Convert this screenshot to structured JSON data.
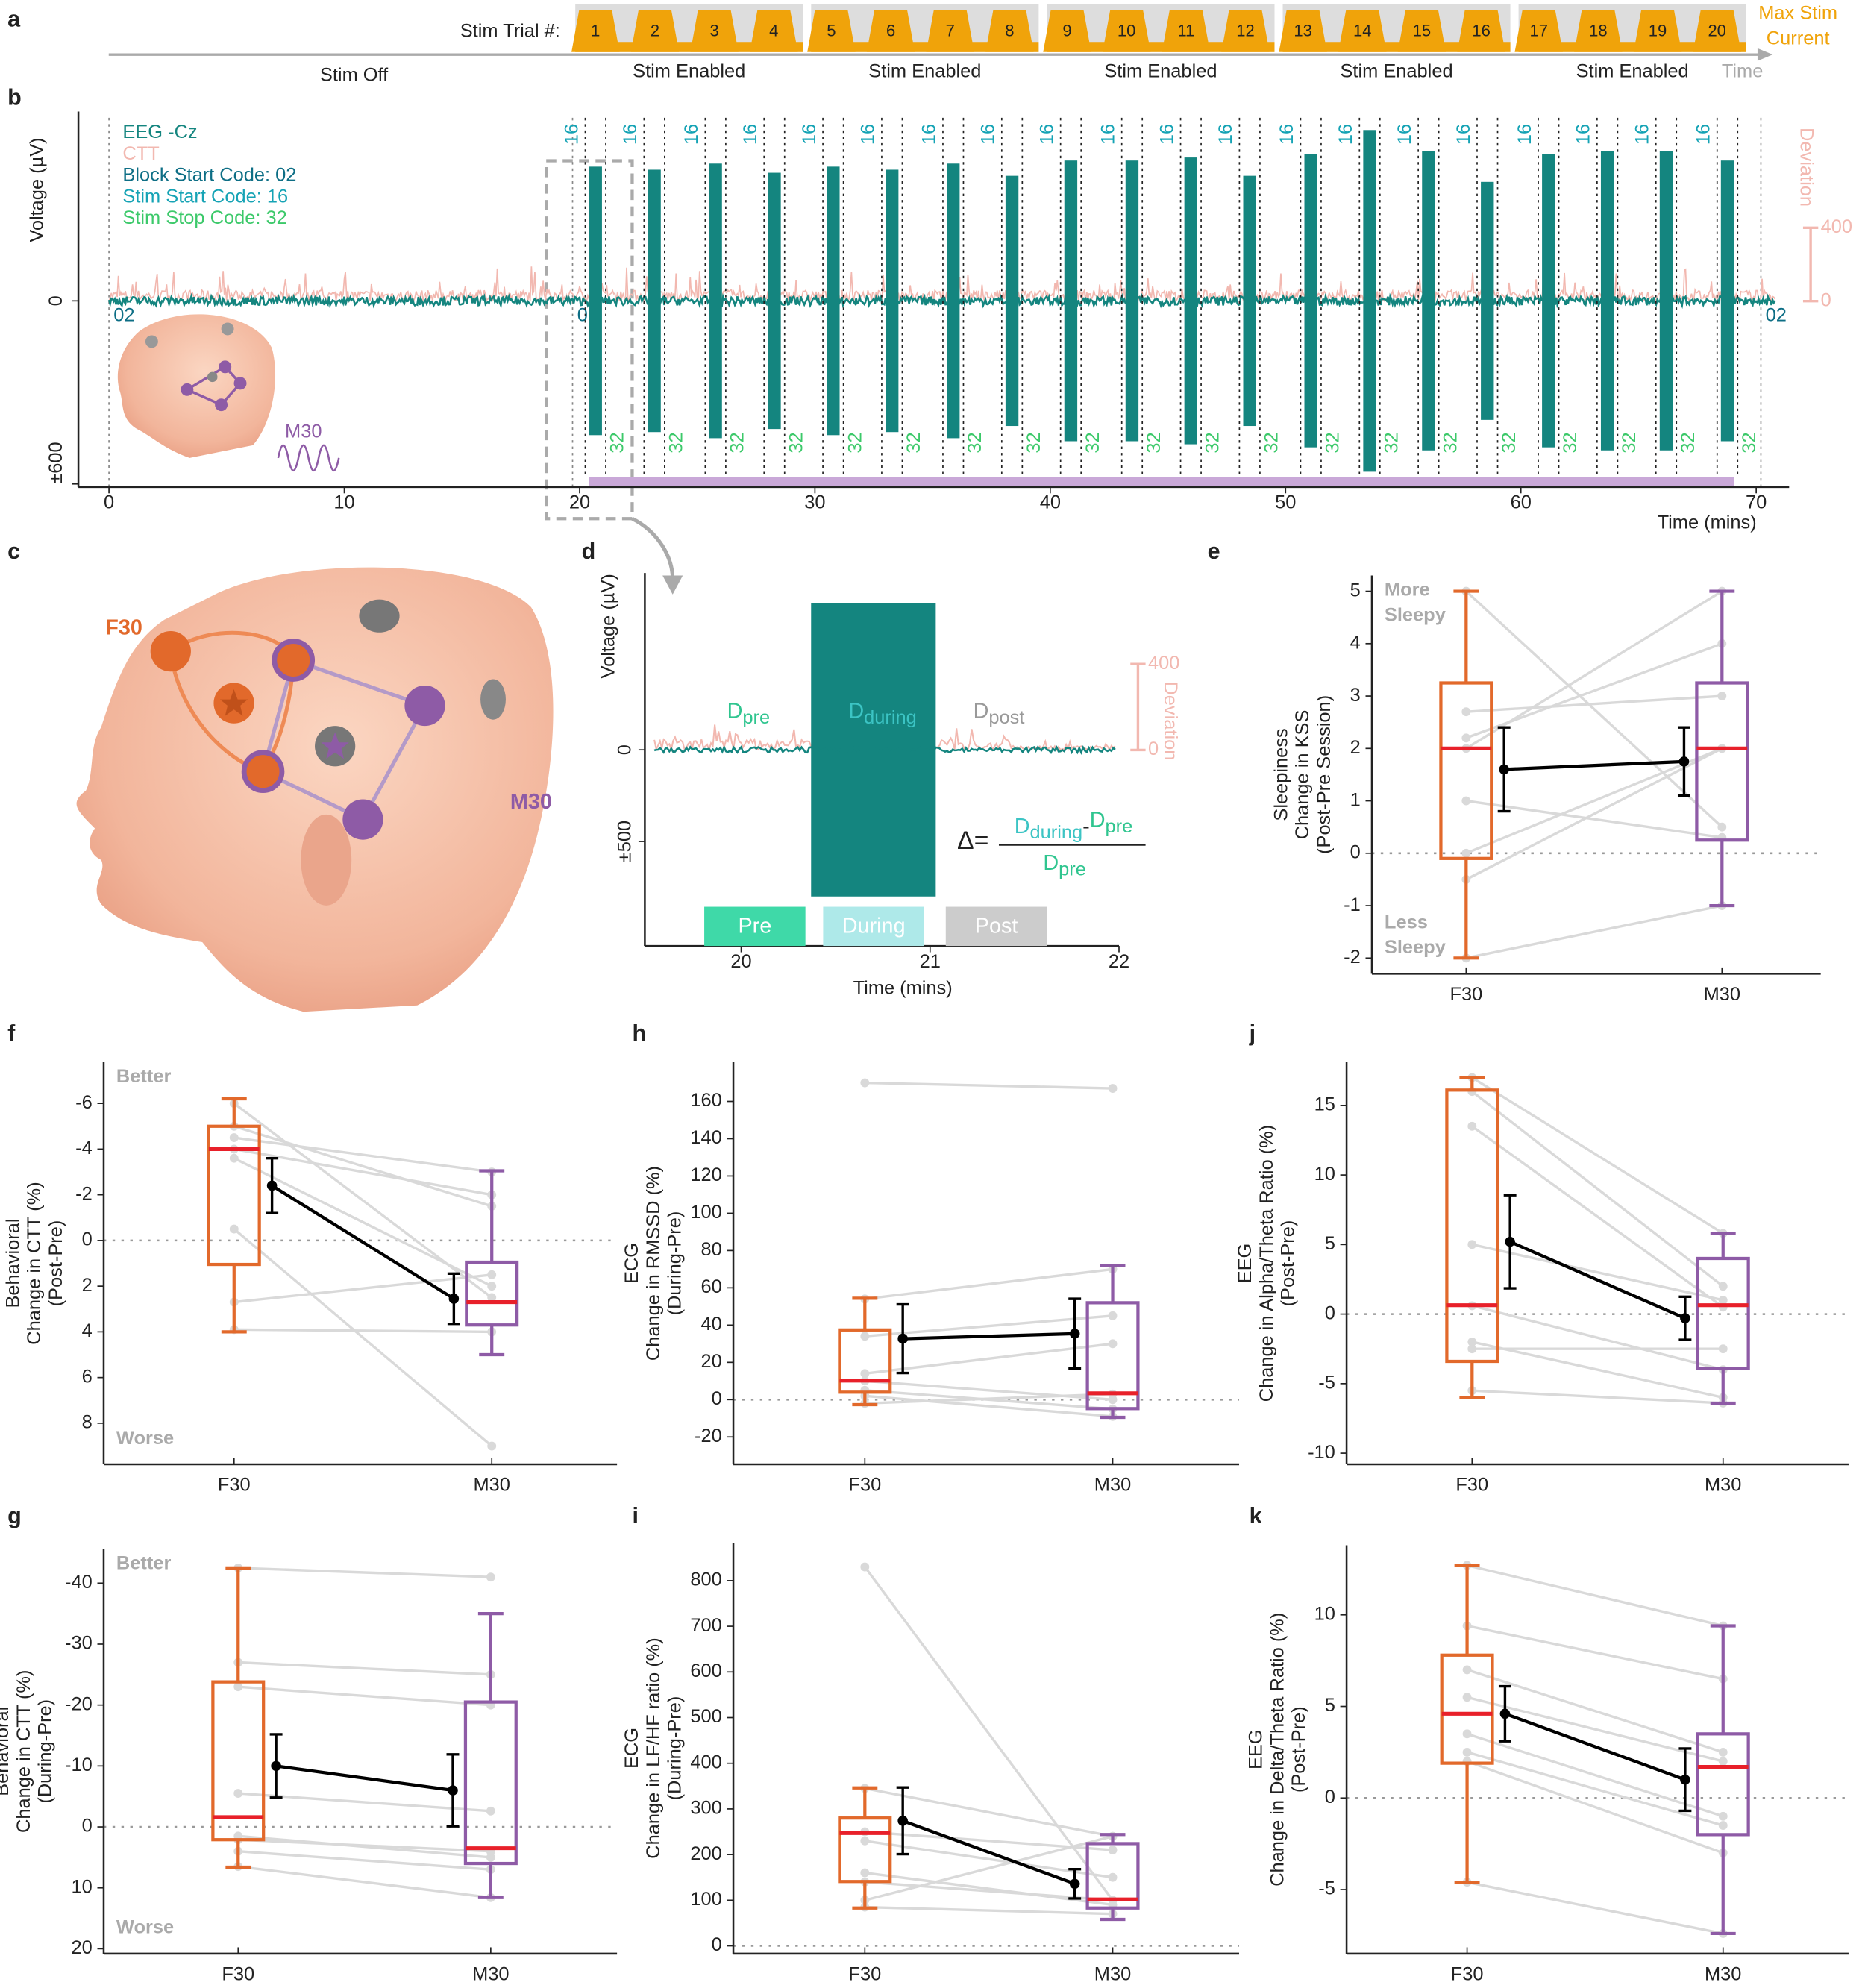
{
  "timeline": {
    "label": "a",
    "trial_prompt": "Stim Trial #:",
    "trials": [
      1,
      2,
      3,
      4,
      5,
      6,
      7,
      8,
      9,
      10,
      11,
      12,
      13,
      14,
      15,
      16,
      17,
      18,
      19,
      20
    ],
    "group_label": "Stim Enabled",
    "off_label": "Stim Off",
    "max_label": [
      "Max Stim",
      "Current"
    ],
    "axis_label": "Time",
    "color": "#f0a30a"
  },
  "eeg": {
    "label": "b",
    "legend": [
      {
        "name": "EEG -Cz",
        "color": "#14857f"
      },
      {
        "name": "CTT",
        "color": "#f2b8b0"
      },
      {
        "name": "Block Start Code: 02",
        "color": "#0d6e85"
      },
      {
        "name": "Stim Start Code: 16",
        "color": "#15a3b5"
      },
      {
        "name": "Stim Stop Code: 32",
        "color": "#3cc96a"
      }
    ],
    "ylabel": "Voltage (µV)",
    "xlabel": "Time (mins)",
    "xlim": [
      -1.3,
      71.4
    ],
    "xticks": [
      0,
      10,
      20,
      30,
      40,
      50,
      60,
      70
    ],
    "ylim": [
      -610,
      600
    ],
    "yticks": [
      {
        "value": -600,
        "label": "±600"
      },
      0
    ],
    "y2lim": [
      -1014,
      1000
    ],
    "y2ticks": [
      0,
      400
    ],
    "y2label": "Deviation",
    "block_code": "02",
    "start_code": "16",
    "stop_code": "32",
    "block_starts": [
      0,
      19.7,
      70.2
    ],
    "burst_starts": [
      20.4,
      22.9,
      25.5,
      28.0,
      30.5,
      33.0,
      35.6,
      38.1,
      40.6,
      43.2,
      45.7,
      48.2,
      50.8,
      53.3,
      55.8,
      58.3,
      60.9,
      63.4,
      65.9,
      68.5
    ],
    "burst_ends": [
      20.95,
      23.45,
      26.05,
      28.55,
      31.05,
      33.55,
      36.15,
      38.65,
      41.15,
      43.75,
      46.25,
      48.75,
      51.35,
      53.85,
      56.35,
      58.85,
      61.45,
      63.95,
      66.45,
      69.05
    ],
    "burst_amplitudes": [
      440,
      430,
      450,
      420,
      440,
      430,
      450,
      410,
      460,
      460,
      470,
      410,
      480,
      560,
      490,
      390,
      480,
      490,
      490,
      460
    ],
    "montage_label": "M30"
  },
  "montage": {
    "label": "c",
    "f30": "F30",
    "m30": "M30"
  },
  "zoom": {
    "label": "d",
    "ylabel": "Voltage (µV)",
    "xlabel": "Time (mins)",
    "xlim": [
      19.49,
      22
    ],
    "xticks": [
      20,
      21,
      22
    ],
    "ylim": [
      -1070,
      965
    ],
    "yticks": [
      {
        "value": -500,
        "label": "±500"
      },
      0
    ],
    "y2lim": [
      -912,
      824
    ],
    "y2ticks": [
      0,
      400
    ],
    "y2label": "Deviation",
    "burst": {
      "start": 20.37,
      "end": 21.03,
      "amplitude": 800
    },
    "terms": {
      "pre": {
        "base": "D",
        "sub": "pre",
        "color": "#2fc58f"
      },
      "during": {
        "base": "D",
        "sub": "during",
        "color": "#3cc4c4"
      },
      "post": {
        "base": "D",
        "sub": "post",
        "color": "#999999"
      }
    },
    "formula": {
      "lhs": "Δ=",
      "minus": "-"
    },
    "phases": [
      {
        "name": "Pre",
        "color": "#3fd9a8"
      },
      {
        "name": "During",
        "color": "#aee9e9"
      },
      {
        "name": "Post",
        "color": "#cccccc"
      }
    ]
  },
  "chart_data": [
    {
      "type": "box",
      "label": "e",
      "ylabel": [
        "Sleepiness",
        "Change in KSS",
        "(Post-Pre Session)"
      ],
      "categories": [
        "F30",
        "M30"
      ],
      "colors": [
        "#e2692b",
        "#8e5ba6"
      ],
      "median_color": "#e8202a",
      "mean_color": "#000000",
      "subject_color": "#d9d9d9",
      "ylim": [
        -2.3,
        5.3
      ],
      "yticks": [
        -2,
        -1,
        0,
        1,
        2,
        3,
        4,
        5
      ],
      "hline": 0,
      "annotations": [
        [
          "More",
          "Sleepy"
        ],
        [
          "Less",
          "Sleepy"
        ]
      ],
      "boxes": [
        [
          -2,
          -0.1,
          2,
          3.25,
          5
        ],
        [
          -1,
          0.25,
          2,
          3.25,
          5
        ]
      ],
      "means": [
        1.6,
        1.75
      ],
      "sem": [
        0.8,
        0.65
      ],
      "subjects": [
        [
          5,
          2.7,
          2.2,
          2,
          1,
          0,
          -0.5,
          -2
        ],
        [
          0.5,
          3,
          4,
          5,
          0.3,
          2,
          2,
          -1
        ]
      ]
    },
    {
      "type": "box",
      "label": "f",
      "ylabel": [
        "Behavioral",
        "Change in CTT (%)",
        "(Post-Pre)"
      ],
      "categories": [
        "F30",
        "M30"
      ],
      "colors": [
        "#e2692b",
        "#8e5ba6"
      ],
      "median_color": "#e8202a",
      "mean_color": "#000000",
      "subject_color": "#d9d9d9",
      "ylim": [
        9.8,
        -7.8
      ],
      "yticks": [
        -6,
        -4,
        -2,
        0,
        2,
        4,
        6,
        8
      ],
      "hline": 0,
      "annotations": [
        [
          "Better"
        ],
        [
          "Worse"
        ]
      ],
      "boxes": [
        [
          -6.2,
          -5,
          -4,
          1.05,
          4
        ],
        [
          -3.05,
          0.95,
          2.7,
          3.7,
          5
        ]
      ],
      "means": [
        -2.4,
        2.55
      ],
      "sem": [
        1.2,
        1.1
      ],
      "subjects": [
        [
          -6,
          -4.5,
          -4,
          -3.6,
          -0.5,
          2.7,
          3.9,
          -5
        ],
        [
          2.5,
          -3,
          -2,
          2,
          9,
          1.5,
          4,
          -1.5
        ]
      ]
    },
    {
      "type": "box",
      "label": "h",
      "ylabel": [
        "ECG",
        "Change in RMSSD (%)",
        "(During-Pre)"
      ],
      "categories": [
        "F30",
        "M30"
      ],
      "colors": [
        "#e2692b",
        "#8e5ba6"
      ],
      "median_color": "#e8202a",
      "mean_color": "#000000",
      "subject_color": "#d9d9d9",
      "ylim": [
        -34.7,
        181
      ],
      "yticks": [
        -20,
        0,
        20,
        40,
        60,
        80,
        100,
        120,
        140,
        160
      ],
      "hline": 0,
      "boxes": [
        [
          -2.7,
          4,
          10.2,
          37.4,
          54.4
        ],
        [
          -9.5,
          -4.8,
          3.4,
          52,
          72
        ]
      ],
      "means": [
        32.7,
        35.4
      ],
      "sem": [
        18.4,
        18.7
      ],
      "subjects": [
        [
          170,
          54,
          34,
          14,
          10,
          5,
          2,
          -2
        ],
        [
          167,
          70,
          45,
          30,
          0,
          -5,
          -9,
          3
        ]
      ]
    },
    {
      "type": "box",
      "label": "j",
      "ylabel": [
        "EEG",
        "Change in Alpha/Theta Ratio (%)",
        "(Post-Pre)"
      ],
      "categories": [
        "F30",
        "M30"
      ],
      "colors": [
        "#e2692b",
        "#8e5ba6"
      ],
      "median_color": "#e8202a",
      "mean_color": "#000000",
      "subject_color": "#d9d9d9",
      "ylim": [
        -10.8,
        18.1
      ],
      "yticks": [
        -10,
        -5,
        0,
        5,
        10,
        15
      ],
      "hline": 0,
      "boxes": [
        [
          -6,
          -3.4,
          0.64,
          16.1,
          17
        ],
        [
          -6.4,
          -3.9,
          0.64,
          4,
          5.8
        ]
      ],
      "means": [
        5.2,
        -0.3
      ],
      "sem": [
        3.35,
        1.55
      ],
      "subjects": [
        [
          17,
          16,
          13.5,
          5,
          0.6,
          -2,
          -2.5,
          -5.5
        ],
        [
          5.8,
          2,
          0.5,
          1,
          -4,
          -6,
          -2.5,
          -6.4
        ]
      ]
    },
    {
      "type": "box",
      "label": "g",
      "ylabel": [
        "Behavioral",
        "Change in CTT (%)",
        "(During-Pre)"
      ],
      "categories": [
        "F30",
        "M30"
      ],
      "colors": [
        "#e2692b",
        "#8e5ba6"
      ],
      "median_color": "#e8202a",
      "mean_color": "#000000",
      "subject_color": "#d9d9d9",
      "ylim": [
        20.8,
        -45.6
      ],
      "yticks": [
        -40,
        -30,
        -20,
        -10,
        0,
        10,
        20
      ],
      "hline": 0,
      "annotations": [
        [
          "Better"
        ],
        [
          "Worse"
        ]
      ],
      "boxes": [
        [
          -42.5,
          -23.8,
          -1.6,
          2.1,
          6.6
        ],
        [
          -35,
          -20.5,
          3.5,
          6,
          11.6
        ]
      ],
      "means": [
        -10,
        -6
      ],
      "sem": [
        5.2,
        5.9
      ],
      "subjects": [
        [
          -42.5,
          -27,
          -23,
          -5.5,
          1.5,
          4,
          6.5,
          2.1
        ],
        [
          -41,
          -25,
          -20,
          -2.6,
          5,
          7,
          11.6,
          4
        ]
      ]
    },
    {
      "type": "box",
      "label": "i",
      "ylabel": [
        "ECG",
        "Change in LF/HF ratio (%)",
        "(During-Pre)"
      ],
      "categories": [
        "F30",
        "M30"
      ],
      "colors": [
        "#e2692b",
        "#8e5ba6"
      ],
      "median_color": "#e8202a",
      "mean_color": "#000000",
      "subject_color": "#d9d9d9",
      "ylim": [
        -17,
        883
      ],
      "yticks": [
        0,
        100,
        200,
        300,
        400,
        500,
        600,
        700,
        800
      ],
      "hline": 0,
      "boxes": [
        [
          83,
          141,
          247,
          280,
          346
        ],
        [
          58,
          83,
          102,
          224,
          244
        ]
      ],
      "means": [
        274,
        136
      ],
      "sem": [
        73,
        32
      ],
      "subjects": [
        [
          830,
          345,
          250,
          230,
          160,
          140,
          100,
          85
        ],
        [
          100,
          240,
          210,
          150,
          90,
          100,
          240,
          70
        ]
      ]
    },
    {
      "type": "box",
      "label": "k",
      "ylabel": [
        "EEG",
        "Change in Delta/Theta Ratio (%)",
        "(Post-Pre)"
      ],
      "categories": [
        "F30",
        "M30"
      ],
      "colors": [
        "#e2692b",
        "#8e5ba6"
      ],
      "median_color": "#e8202a",
      "mean_color": "#000000",
      "subject_color": "#d9d9d9",
      "ylim": [
        -8.5,
        13.8
      ],
      "yticks": [
        -5,
        0,
        5,
        10
      ],
      "hline": 0,
      "boxes": [
        [
          -4.6,
          1.9,
          4.6,
          7.8,
          12.7
        ],
        [
          -7.4,
          -2,
          1.7,
          3.5,
          9.4
        ]
      ],
      "means": [
        4.6,
        1.0
      ],
      "sem": [
        1.5,
        1.7
      ],
      "subjects": [
        [
          12.7,
          9.4,
          7,
          5.5,
          3.5,
          2.5,
          2,
          -4.6
        ],
        [
          9.4,
          6.5,
          2.5,
          2,
          -1,
          -1.5,
          -3,
          -7.4
        ]
      ]
    }
  ]
}
